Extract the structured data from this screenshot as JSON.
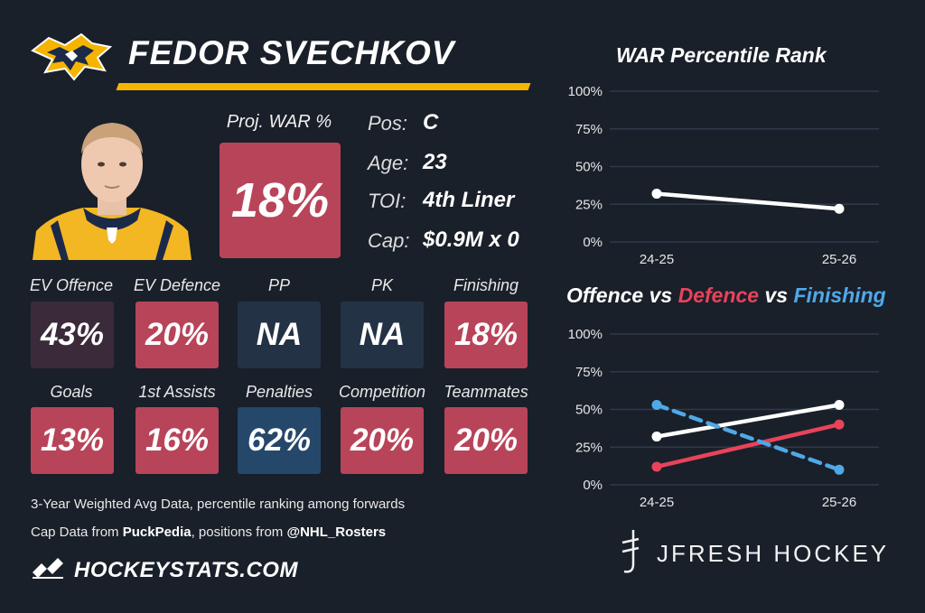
{
  "header": {
    "player_name": "FEDOR SVECHKOV",
    "team_logo": "predators-logo-icon"
  },
  "war": {
    "label": "Proj. WAR %",
    "value": "18%",
    "color": "#b8445a"
  },
  "info": [
    {
      "label": "Pos:",
      "value": "C"
    },
    {
      "label": "Age:",
      "value": "23"
    },
    {
      "label": "TOI:",
      "value": "4th Liner"
    },
    {
      "label": "Cap:",
      "value": "$0.9M x 0"
    }
  ],
  "tiles": [
    {
      "label": "EV Offence",
      "value": "43%",
      "color": "#3a2a3a"
    },
    {
      "label": "EV Defence",
      "value": "20%",
      "color": "#b8445a"
    },
    {
      "label": "PP",
      "value": "NA",
      "color": "#243245"
    },
    {
      "label": "PK",
      "value": "NA",
      "color": "#243245"
    },
    {
      "label": "Finishing",
      "value": "18%",
      "color": "#b8445a"
    },
    {
      "label": "Goals",
      "value": "13%",
      "color": "#b8445a"
    },
    {
      "label": "1st Assists",
      "value": "16%",
      "color": "#b8445a"
    },
    {
      "label": "Penalties",
      "value": "62%",
      "color": "#24476a"
    },
    {
      "label": "Competition",
      "value": "20%",
      "color": "#b8445a"
    },
    {
      "label": "Teammates",
      "value": "20%",
      "color": "#b8445a"
    }
  ],
  "footnotes": {
    "line1": "3-Year Weighted Avg Data, percentile ranking among forwards",
    "line2_prefix": "Cap Data from ",
    "line2_source": "PuckPedia",
    "line2_middle": ", positions from ",
    "line2_handle": "@NHL_Rosters"
  },
  "brand": {
    "text": "HOCKEYSTATS.COM",
    "icon": "hockeystats-logo-icon"
  },
  "watermark": {
    "text": "JFRESH HOCKEY",
    "icon": "jfresh-logo-icon"
  },
  "colors": {
    "background": "#1a2029",
    "accent_bar": "#f4b400",
    "offence": "#ffffff",
    "defence": "#e8435a",
    "finishing": "#4fa8e8"
  },
  "chart_data": [
    {
      "type": "line",
      "title": "WAR Percentile Rank",
      "categories": [
        "24-25",
        "25-26"
      ],
      "ylim": [
        0,
        100
      ],
      "y_ticks": [
        "0%",
        "25%",
        "50%",
        "75%",
        "100%"
      ],
      "grid": true,
      "series": [
        {
          "values": [
            32,
            22
          ],
          "color": "#ffffff",
          "dashed": false
        }
      ]
    },
    {
      "type": "line",
      "title": {
        "part1": "Offence",
        "sep1": " vs ",
        "part2": "Defence",
        "sep2": " vs ",
        "part3": "Finishing"
      },
      "categories": [
        "24-25",
        "25-26"
      ],
      "ylim": [
        0,
        100
      ],
      "y_ticks": [
        "0%",
        "25%",
        "50%",
        "75%",
        "100%"
      ],
      "grid": true,
      "series": [
        {
          "name": "Offence",
          "values": [
            32,
            53
          ],
          "color": "#ffffff",
          "dashed": false
        },
        {
          "name": "Defence",
          "values": [
            12,
            40
          ],
          "color": "#e8435a",
          "dashed": false
        },
        {
          "name": "Finishing",
          "values": [
            53,
            10
          ],
          "color": "#4fa8e8",
          "dashed": true
        }
      ]
    }
  ]
}
